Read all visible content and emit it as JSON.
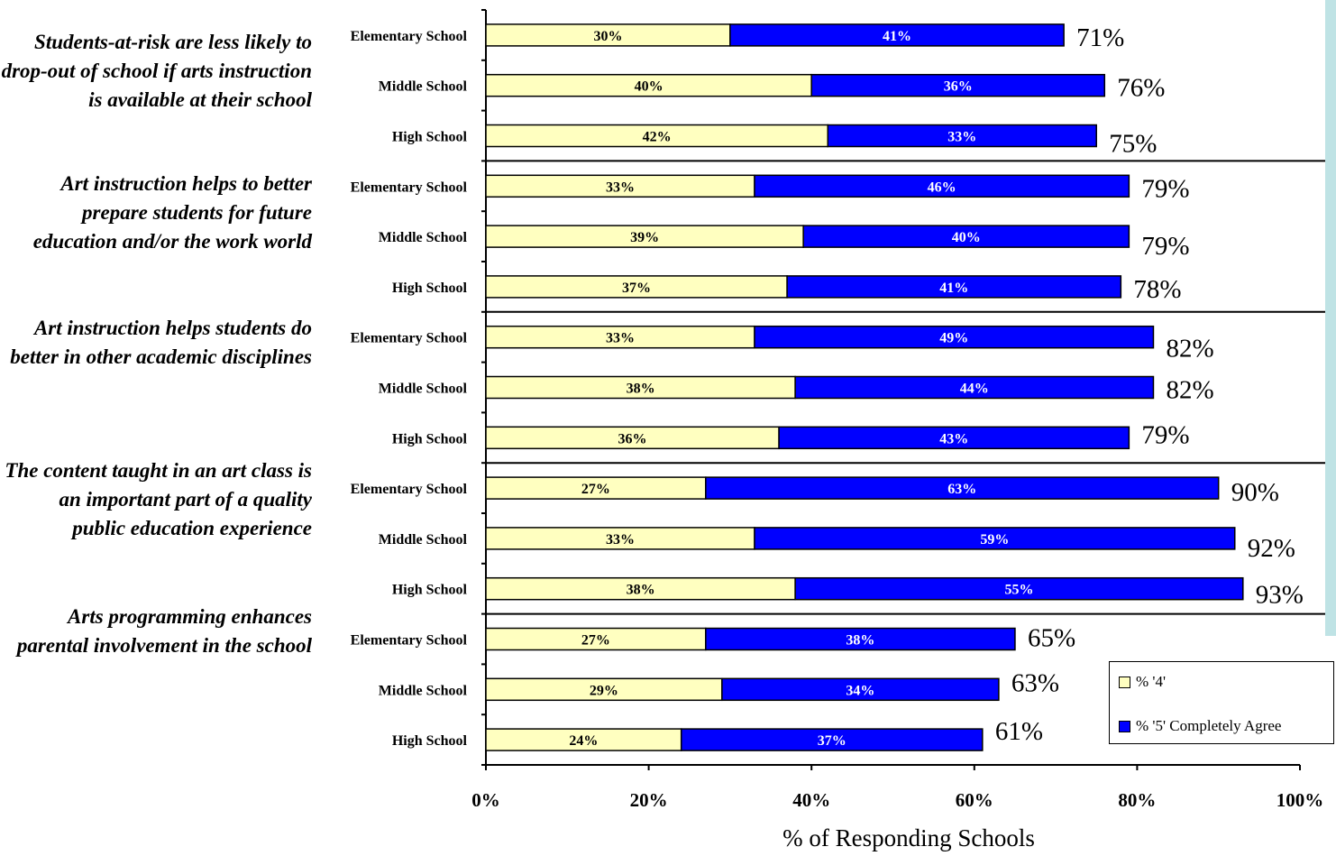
{
  "colors": {
    "agree4": "#ffffc0",
    "agree5": "#0000ff",
    "axis": "#000000",
    "strip": "#bfe3e5"
  },
  "statements": [
    "Students-at-risk are less likely to drop-out of school if arts instruction is available at their school",
    "Art instruction helps to better prepare students for future education and/or the work world",
    "Art instruction helps students do better in other academic disciplines",
    "The content taught in an art class is an important part of a quality public education experience",
    "Arts programming enhances parental involvement in the school"
  ],
  "xlabel": "% of Responding Schools",
  "legend": {
    "item1": "% '4'",
    "item2": "% '5' Completely Agree"
  },
  "chart_data": {
    "type": "bar",
    "orientation": "horizontal",
    "stacked": true,
    "xlabel": "% of Responding Schools",
    "xlim": [
      0,
      100
    ],
    "xticks": [
      "0%",
      "20%",
      "40%",
      "60%",
      "80%",
      "100%"
    ],
    "categories": [
      "Elementary School",
      "Middle School",
      "High School",
      "Elementary School",
      "Middle School",
      "High School",
      "Elementary School",
      "Middle School",
      "High School",
      "Elementary School",
      "Middle School",
      "High School",
      "Elementary School",
      "Middle School",
      "High School"
    ],
    "series": [
      {
        "name": "% '4'",
        "values": [
          30,
          40,
          42,
          33,
          39,
          37,
          33,
          38,
          36,
          27,
          33,
          38,
          27,
          29,
          24
        ],
        "labels": [
          "30%",
          "40%",
          "42%",
          "33%",
          "39%",
          "37%",
          "33%",
          "38%",
          "36%",
          "27%",
          "33%",
          "38%",
          "27%",
          "29%",
          "24%"
        ]
      },
      {
        "name": "% '5' Completely Agree",
        "values": [
          41,
          36,
          33,
          46,
          40,
          41,
          49,
          44,
          43,
          63,
          59,
          55,
          38,
          34,
          37
        ],
        "labels": [
          "41%",
          "36%",
          "33%",
          "46%",
          "40%",
          "41%",
          "49%",
          "44%",
          "43%",
          "63%",
          "59%",
          "55%",
          "38%",
          "34%",
          "37%"
        ]
      }
    ],
    "totals": [
      "71%",
      "76%",
      "75%",
      "79%",
      "79%",
      "78%",
      "82%",
      "82%",
      "79%",
      "90%",
      "92%",
      "93%",
      "65%",
      "63%",
      "61%"
    ],
    "legend_position": "bottom-right"
  }
}
